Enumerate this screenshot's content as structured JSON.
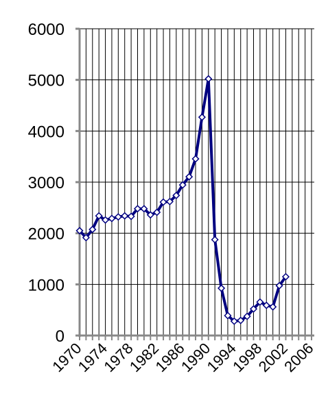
{
  "chart_data": {
    "type": "line",
    "x": [
      1970,
      1971,
      1972,
      1973,
      1974,
      1975,
      1976,
      1977,
      1978,
      1979,
      1980,
      1981,
      1982,
      1983,
      1984,
      1985,
      1986,
      1987,
      1988,
      1989,
      1990,
      1991,
      1992,
      1993,
      1994,
      1995,
      1996,
      1997,
      1998,
      1999,
      2000,
      2001,
      2002
    ],
    "series": [
      {
        "color": "#000080",
        "values": [
          2050,
          1915,
          2075,
          2340,
          2260,
          2290,
          2320,
          2340,
          2330,
          2480,
          2480,
          2360,
          2410,
          2610,
          2620,
          2740,
          2945,
          3105,
          3455,
          4270,
          5020,
          1875,
          925,
          390,
          280,
          295,
          375,
          520,
          655,
          590,
          560,
          975,
          1150
        ]
      }
    ],
    "xlim": [
      1970,
      2006
    ],
    "xticks": [
      1970,
      1974,
      1978,
      1982,
      1986,
      1990,
      1994,
      1998,
      2002,
      2006
    ],
    "x_gridlines": [
      1970,
      1971,
      1972,
      1973,
      1974,
      1975,
      1976,
      1977,
      1978,
      1979,
      1980,
      1981,
      1982,
      1983,
      1984,
      1985,
      1986,
      1987,
      1988,
      1989,
      1990,
      1991,
      1992,
      1993,
      1994,
      1995,
      1996,
      1997,
      1998,
      1999,
      2000,
      2001,
      2002,
      2003,
      2004,
      2005,
      2006
    ],
    "ylim": [
      0,
      6000
    ],
    "yticks": [
      0,
      1000,
      2000,
      3000,
      4000,
      5000,
      6000
    ],
    "grid": true
  }
}
